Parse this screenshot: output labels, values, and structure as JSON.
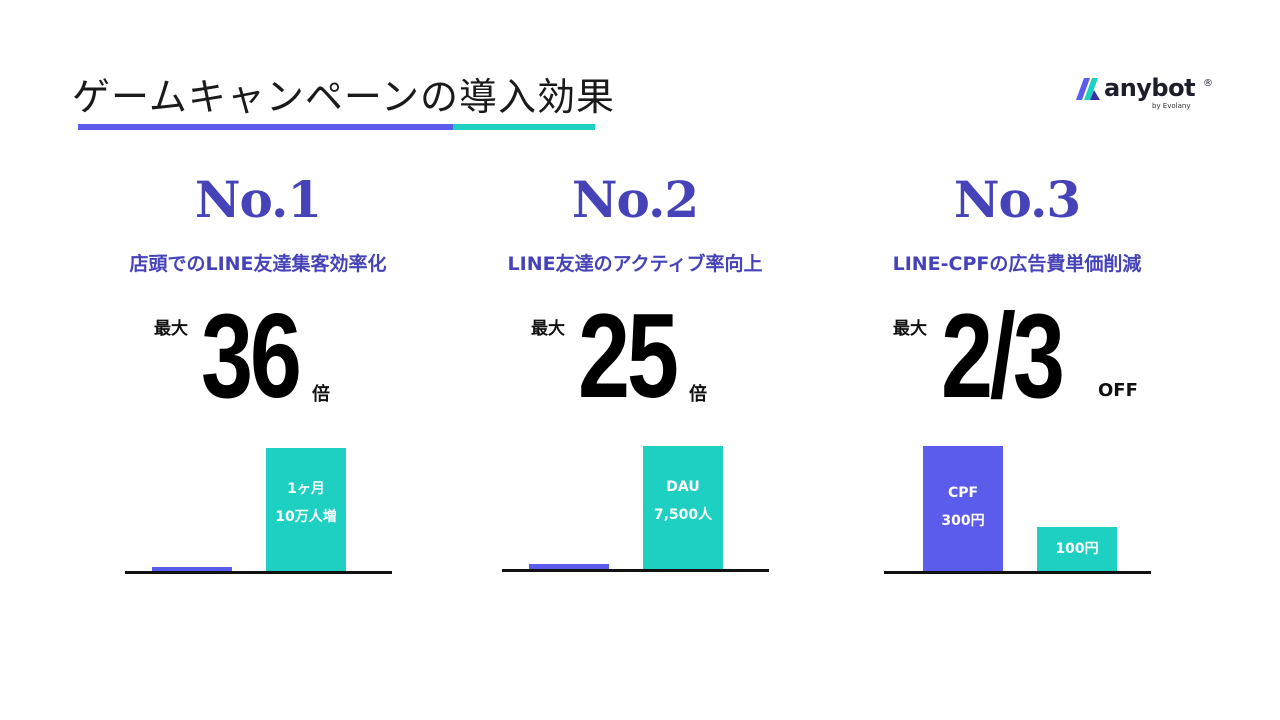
{
  "header": {
    "title": "ゲームキャンペーンの導入効果",
    "logo": {
      "brand": "anybot",
      "registered": "®",
      "tagline": "by Evolany"
    }
  },
  "colors": {
    "purple": "#5b5cec",
    "teal": "#1dd0c2",
    "rank_text": "#4643b8",
    "subtitle_text": "#4643b8"
  },
  "items": [
    {
      "rank": "No.1",
      "subtitle": "店頭でのLINE友達集客効率化",
      "max_label": "最大",
      "big_value": "36",
      "unit": "倍",
      "bars": [
        {
          "label_lines": [],
          "color": "purple"
        },
        {
          "label_lines": [
            "1ヶ月",
            "10万人増"
          ],
          "color": "teal"
        }
      ]
    },
    {
      "rank": "No.2",
      "subtitle": "LINE友達のアクティブ率向上",
      "max_label": "最大",
      "big_value": "25",
      "unit": "倍",
      "bars": [
        {
          "label_lines": [],
          "color": "purple"
        },
        {
          "label_lines": [
            "DAU",
            "7,500人"
          ],
          "color": "teal"
        }
      ]
    },
    {
      "rank": "No.3",
      "subtitle": "LINE-CPFの広告費単価削減",
      "max_label": "最大",
      "big_value": "2/3",
      "unit": "OFF",
      "bars": [
        {
          "label_lines": [
            "CPF",
            "300円"
          ],
          "color": "purple"
        },
        {
          "label_lines": [
            "100円"
          ],
          "color": "teal"
        }
      ]
    }
  ]
}
